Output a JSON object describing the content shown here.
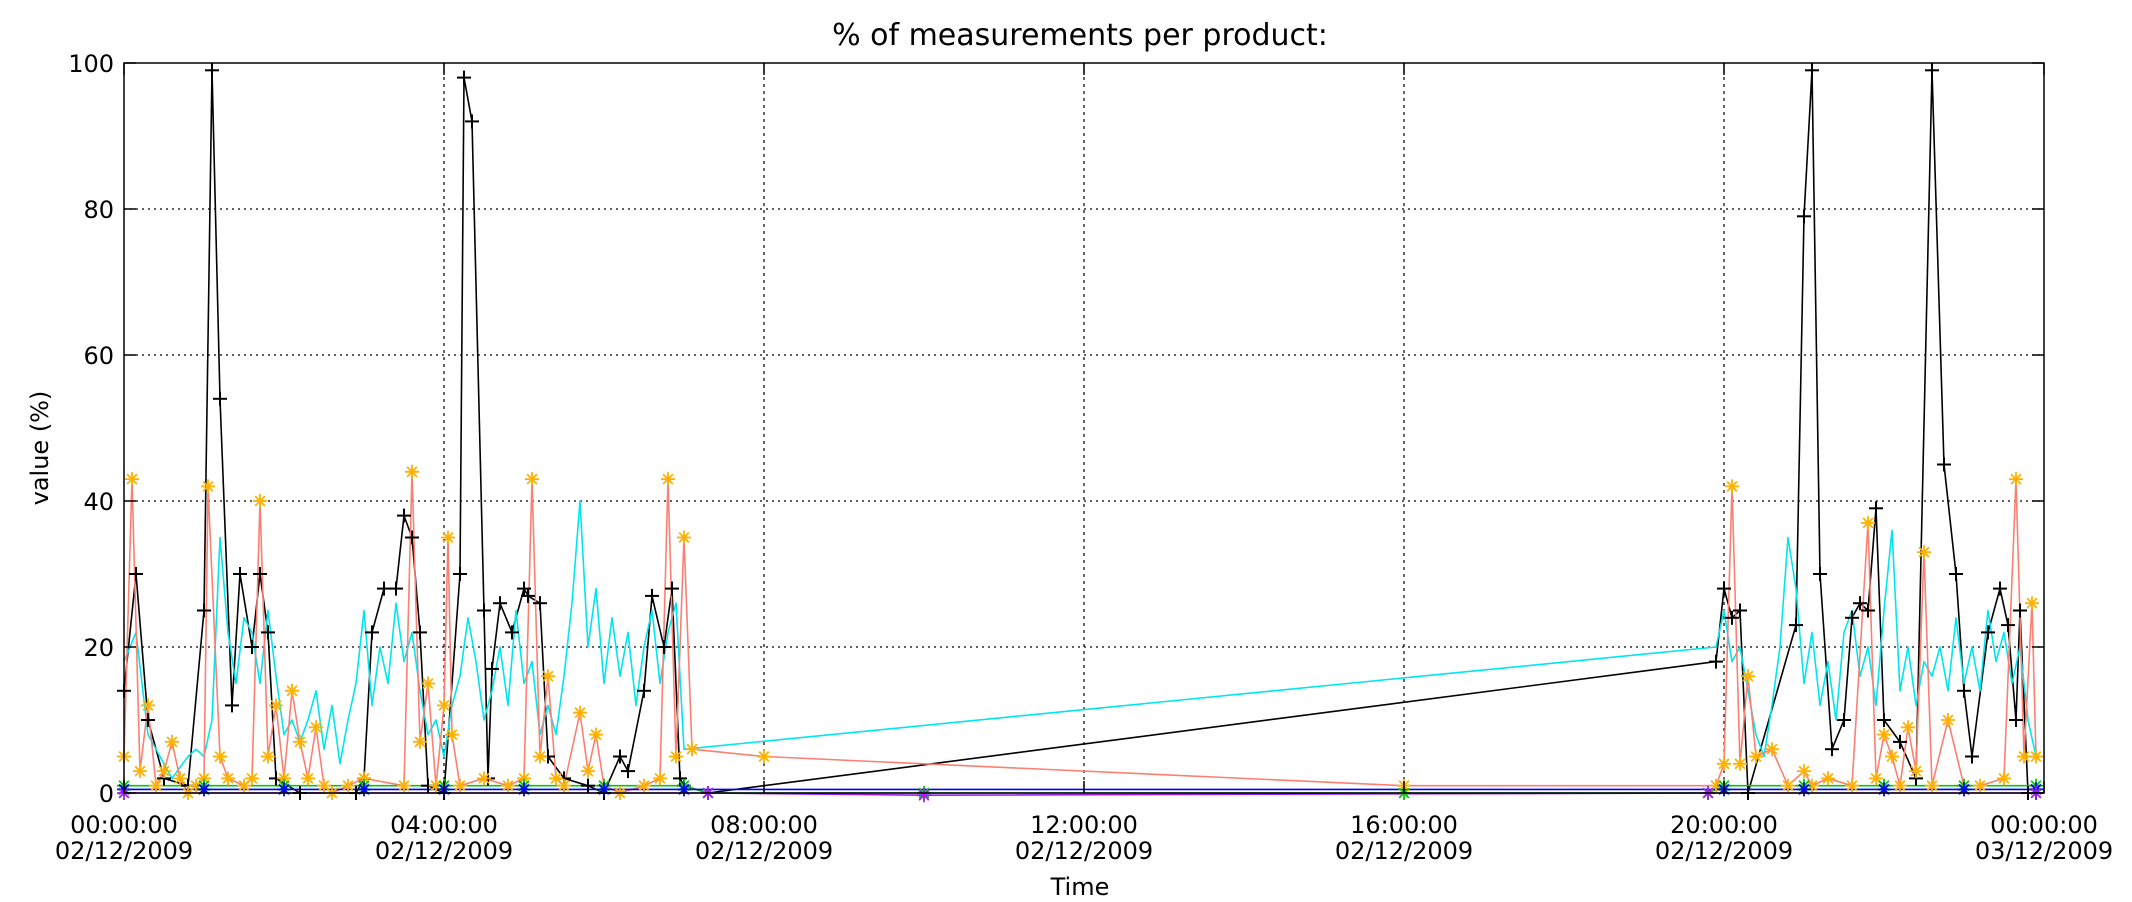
{
  "chart_data": {
    "type": "line",
    "title": "% of measurements per product:",
    "xlabel": "Time",
    "ylabel": "value (%)",
    "x_unit": "hours since 00:00:00 02/12/2009",
    "xlim": [
      0,
      24
    ],
    "ylim": [
      0,
      100
    ],
    "grid": true,
    "x_ticks": [
      {
        "value": 0,
        "time": "00:00:00",
        "date": "02/12/2009"
      },
      {
        "value": 4,
        "time": "04:00:00",
        "date": "02/12/2009"
      },
      {
        "value": 8,
        "time": "08:00:00",
        "date": "02/12/2009"
      },
      {
        "value": 12,
        "time": "12:00:00",
        "date": "02/12/2009"
      },
      {
        "value": 16,
        "time": "16:00:00",
        "date": "02/12/2009"
      },
      {
        "value": 20,
        "time": "20:00:00",
        "date": "02/12/2009"
      },
      {
        "value": 24,
        "time": "00:00:00",
        "date": "03/12/2009"
      }
    ],
    "y_ticks": [
      0,
      20,
      40,
      60,
      80,
      100
    ],
    "series": [
      {
        "color": "#000000",
        "marker": "plus",
        "points": [
          [
            0.0,
            14
          ],
          [
            0.15,
            30
          ],
          [
            0.3,
            10
          ],
          [
            0.5,
            2
          ],
          [
            0.8,
            1
          ],
          [
            1.0,
            25
          ],
          [
            1.1,
            99
          ],
          [
            1.2,
            54
          ],
          [
            1.35,
            12
          ],
          [
            1.45,
            30
          ],
          [
            1.6,
            20
          ],
          [
            1.7,
            30
          ],
          [
            1.8,
            22
          ],
          [
            1.9,
            2
          ],
          [
            2.2,
            0
          ],
          [
            2.9,
            0
          ],
          [
            3.0,
            2
          ],
          [
            3.1,
            22
          ],
          [
            3.25,
            28
          ],
          [
            3.4,
            28
          ],
          [
            3.5,
            38
          ],
          [
            3.6,
            35
          ],
          [
            3.7,
            22
          ],
          [
            3.8,
            1
          ],
          [
            4.0,
            0
          ],
          [
            4.2,
            30
          ],
          [
            4.25,
            98
          ],
          [
            4.35,
            92
          ],
          [
            4.5,
            25
          ],
          [
            4.55,
            2
          ],
          [
            4.6,
            17
          ],
          [
            4.7,
            26
          ],
          [
            4.85,
            22
          ],
          [
            5.0,
            28
          ],
          [
            5.05,
            27
          ],
          [
            5.2,
            26
          ],
          [
            5.3,
            5
          ],
          [
            5.5,
            2
          ],
          [
            5.8,
            1
          ],
          [
            6.0,
            0
          ],
          [
            6.2,
            5
          ],
          [
            6.3,
            3
          ],
          [
            6.5,
            14
          ],
          [
            6.6,
            27
          ],
          [
            6.75,
            20
          ],
          [
            6.85,
            28
          ],
          [
            6.95,
            2
          ],
          [
            7.0,
            1
          ],
          [
            7.3,
            0
          ],
          [
            19.9,
            18
          ],
          [
            20.0,
            28
          ],
          [
            20.1,
            24
          ],
          [
            20.2,
            25
          ],
          [
            20.3,
            0
          ],
          [
            20.9,
            23
          ],
          [
            21.0,
            79
          ],
          [
            21.1,
            99
          ],
          [
            21.2,
            30
          ],
          [
            21.35,
            6
          ],
          [
            21.5,
            10
          ],
          [
            21.6,
            24
          ],
          [
            21.7,
            26
          ],
          [
            21.8,
            25
          ],
          [
            21.9,
            39
          ],
          [
            22.0,
            10
          ],
          [
            22.2,
            7
          ],
          [
            22.4,
            2
          ],
          [
            22.6,
            99
          ],
          [
            22.75,
            45
          ],
          [
            22.9,
            30
          ],
          [
            23.0,
            14
          ],
          [
            23.1,
            5
          ],
          [
            23.3,
            22
          ],
          [
            23.45,
            28
          ],
          [
            23.55,
            23
          ],
          [
            23.65,
            10
          ],
          [
            23.7,
            25
          ],
          [
            23.8,
            0
          ],
          [
            23.9,
            0
          ]
        ]
      },
      {
        "color": "#00e5ee",
        "marker": "none",
        "points": [
          [
            0.0,
            18
          ],
          [
            0.15,
            22
          ],
          [
            0.3,
            8
          ],
          [
            0.45,
            5
          ],
          [
            0.6,
            2
          ],
          [
            0.8,
            5
          ],
          [
            0.9,
            6
          ],
          [
            1.0,
            5
          ],
          [
            1.1,
            10
          ],
          [
            1.2,
            35
          ],
          [
            1.3,
            22
          ],
          [
            1.4,
            15
          ],
          [
            1.5,
            24
          ],
          [
            1.6,
            22
          ],
          [
            1.7,
            15
          ],
          [
            1.8,
            25
          ],
          [
            1.9,
            16
          ],
          [
            2.0,
            8
          ],
          [
            2.1,
            10
          ],
          [
            2.2,
            7
          ],
          [
            2.3,
            10
          ],
          [
            2.4,
            14
          ],
          [
            2.5,
            6
          ],
          [
            2.6,
            12
          ],
          [
            2.7,
            4
          ],
          [
            2.8,
            10
          ],
          [
            2.9,
            15
          ],
          [
            3.0,
            25
          ],
          [
            3.1,
            12
          ],
          [
            3.2,
            20
          ],
          [
            3.3,
            15
          ],
          [
            3.4,
            26
          ],
          [
            3.5,
            18
          ],
          [
            3.6,
            22
          ],
          [
            3.7,
            14
          ],
          [
            3.8,
            8
          ],
          [
            3.9,
            10
          ],
          [
            4.0,
            5
          ],
          [
            4.1,
            12
          ],
          [
            4.2,
            16
          ],
          [
            4.3,
            24
          ],
          [
            4.4,
            18
          ],
          [
            4.5,
            10
          ],
          [
            4.6,
            14
          ],
          [
            4.7,
            20
          ],
          [
            4.8,
            12
          ],
          [
            4.9,
            25
          ],
          [
            5.0,
            15
          ],
          [
            5.1,
            18
          ],
          [
            5.2,
            8
          ],
          [
            5.3,
            12
          ],
          [
            5.4,
            8
          ],
          [
            5.5,
            16
          ],
          [
            5.6,
            26
          ],
          [
            5.7,
            40
          ],
          [
            5.8,
            20
          ],
          [
            5.9,
            28
          ],
          [
            6.0,
            15
          ],
          [
            6.1,
            24
          ],
          [
            6.2,
            16
          ],
          [
            6.3,
            22
          ],
          [
            6.4,
            12
          ],
          [
            6.5,
            20
          ],
          [
            6.6,
            25
          ],
          [
            6.7,
            15
          ],
          [
            6.8,
            22
          ],
          [
            6.9,
            26
          ],
          [
            7.0,
            6
          ],
          [
            19.9,
            20
          ],
          [
            20.0,
            25
          ],
          [
            20.1,
            18
          ],
          [
            20.2,
            20
          ],
          [
            20.3,
            14
          ],
          [
            20.4,
            8
          ],
          [
            20.5,
            5
          ],
          [
            20.6,
            12
          ],
          [
            20.7,
            20
          ],
          [
            20.8,
            35
          ],
          [
            20.9,
            28
          ],
          [
            21.0,
            15
          ],
          [
            21.1,
            22
          ],
          [
            21.2,
            12
          ],
          [
            21.3,
            18
          ],
          [
            21.4,
            10
          ],
          [
            21.5,
            22
          ],
          [
            21.6,
            25
          ],
          [
            21.7,
            16
          ],
          [
            21.8,
            20
          ],
          [
            21.9,
            12
          ],
          [
            22.0,
            25
          ],
          [
            22.1,
            36
          ],
          [
            22.2,
            14
          ],
          [
            22.3,
            20
          ],
          [
            22.4,
            12
          ],
          [
            22.5,
            18
          ],
          [
            22.6,
            16
          ],
          [
            22.7,
            20
          ],
          [
            22.8,
            14
          ],
          [
            22.9,
            24
          ],
          [
            23.0,
            15
          ],
          [
            23.1,
            20
          ],
          [
            23.2,
            14
          ],
          [
            23.3,
            25
          ],
          [
            23.4,
            18
          ],
          [
            23.5,
            22
          ],
          [
            23.6,
            15
          ],
          [
            23.7,
            20
          ],
          [
            23.8,
            10
          ],
          [
            23.9,
            5
          ]
        ]
      },
      {
        "color": "#fa8072",
        "marker": "asterisk",
        "points": [
          [
            0.0,
            5
          ],
          [
            0.1,
            43
          ],
          [
            0.2,
            3
          ],
          [
            0.3,
            12
          ],
          [
            0.4,
            1
          ],
          [
            0.5,
            3
          ],
          [
            0.6,
            7
          ],
          [
            0.7,
            2
          ],
          [
            0.8,
            0
          ],
          [
            0.9,
            1
          ],
          [
            1.0,
            2
          ],
          [
            1.05,
            42
          ],
          [
            1.2,
            5
          ],
          [
            1.3,
            2
          ],
          [
            1.5,
            1
          ],
          [
            1.6,
            2
          ],
          [
            1.7,
            40
          ],
          [
            1.8,
            5
          ],
          [
            1.9,
            12
          ],
          [
            2.0,
            2
          ],
          [
            2.1,
            14
          ],
          [
            2.2,
            7
          ],
          [
            2.3,
            2
          ],
          [
            2.4,
            9
          ],
          [
            2.5,
            1
          ],
          [
            2.6,
            0
          ],
          [
            2.8,
            1
          ],
          [
            3.0,
            2
          ],
          [
            3.5,
            1
          ],
          [
            3.6,
            44
          ],
          [
            3.7,
            7
          ],
          [
            3.8,
            15
          ],
          [
            3.9,
            1
          ],
          [
            4.0,
            12
          ],
          [
            4.05,
            35
          ],
          [
            4.1,
            8
          ],
          [
            4.2,
            1
          ],
          [
            4.5,
            2
          ],
          [
            4.8,
            1
          ],
          [
            5.0,
            2
          ],
          [
            5.1,
            43
          ],
          [
            5.2,
            5
          ],
          [
            5.3,
            16
          ],
          [
            5.4,
            2
          ],
          [
            5.5,
            1
          ],
          [
            5.7,
            11
          ],
          [
            5.8,
            3
          ],
          [
            5.9,
            8
          ],
          [
            6.0,
            1
          ],
          [
            6.2,
            0
          ],
          [
            6.5,
            1
          ],
          [
            6.7,
            2
          ],
          [
            6.8,
            43
          ],
          [
            6.9,
            5
          ],
          [
            7.0,
            35
          ],
          [
            7.1,
            6
          ],
          [
            8.0,
            5
          ],
          [
            16.0,
            1
          ],
          [
            19.9,
            1
          ],
          [
            20.0,
            4
          ],
          [
            20.1,
            42
          ],
          [
            20.2,
            4
          ],
          [
            20.3,
            16
          ],
          [
            20.4,
            5
          ],
          [
            20.6,
            6
          ],
          [
            20.8,
            1
          ],
          [
            21.0,
            3
          ],
          [
            21.1,
            1
          ],
          [
            21.3,
            2
          ],
          [
            21.6,
            1
          ],
          [
            21.8,
            37
          ],
          [
            21.9,
            2
          ],
          [
            22.0,
            8
          ],
          [
            22.1,
            5
          ],
          [
            22.2,
            1
          ],
          [
            22.3,
            9
          ],
          [
            22.4,
            3
          ],
          [
            22.5,
            33
          ],
          [
            22.6,
            1
          ],
          [
            22.8,
            10
          ],
          [
            23.0,
            1
          ],
          [
            23.2,
            1
          ],
          [
            23.5,
            2
          ],
          [
            23.65,
            43
          ],
          [
            23.75,
            5
          ],
          [
            23.85,
            26
          ],
          [
            23.9,
            5
          ]
        ]
      },
      {
        "color": "#00cc00",
        "marker": "asterisk",
        "points": [
          [
            0.0,
            1
          ],
          [
            1.0,
            1
          ],
          [
            2.0,
            1
          ],
          [
            3.0,
            1
          ],
          [
            4.0,
            1
          ],
          [
            5.0,
            1
          ],
          [
            6.0,
            1
          ],
          [
            7.0,
            1
          ],
          [
            7.3,
            0
          ],
          [
            10.0,
            0
          ],
          [
            16.0,
            0
          ],
          [
            19.8,
            0
          ],
          [
            20.0,
            1
          ],
          [
            21.0,
            1
          ],
          [
            22.0,
            1
          ],
          [
            23.0,
            1
          ],
          [
            23.9,
            1
          ]
        ]
      },
      {
        "color": "#0000ff",
        "marker": "asterisk",
        "points": [
          [
            0.0,
            0.5
          ],
          [
            1.0,
            0.5
          ],
          [
            2.0,
            0.5
          ],
          [
            3.0,
            0.5
          ],
          [
            4.0,
            0.5
          ],
          [
            5.0,
            0.5
          ],
          [
            6.0,
            0.5
          ],
          [
            7.0,
            0.5
          ],
          [
            20.0,
            0.5
          ],
          [
            21.0,
            0.5
          ],
          [
            22.0,
            0.5
          ],
          [
            23.0,
            0.5
          ],
          [
            23.9,
            0.5
          ]
        ]
      },
      {
        "color": "#a020f0",
        "marker": "asterisk",
        "points": [
          [
            0.0,
            0
          ],
          [
            7.3,
            0
          ],
          [
            10.0,
            -0.3
          ],
          [
            19.8,
            0
          ],
          [
            23.9,
            0
          ]
        ]
      }
    ]
  }
}
